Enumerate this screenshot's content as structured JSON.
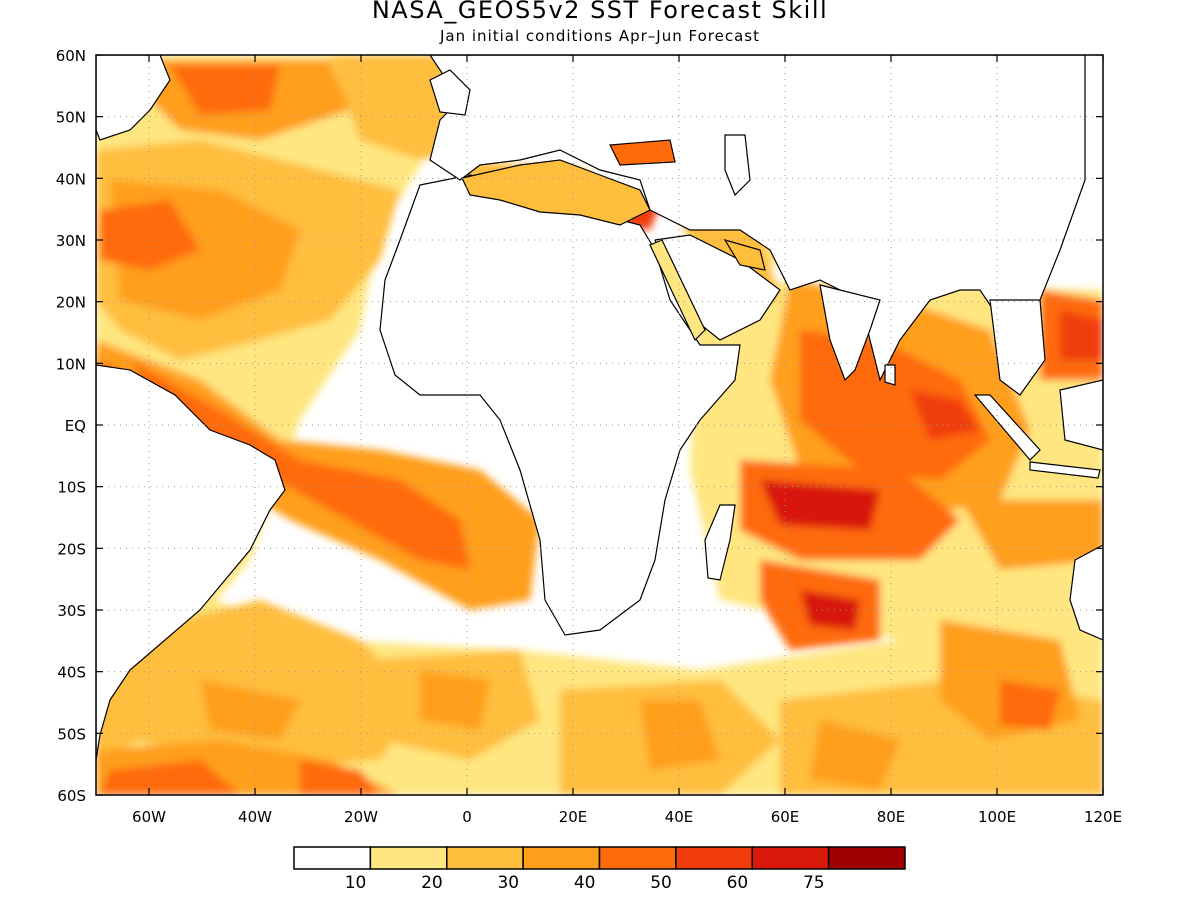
{
  "title": "NASA_GEOS5v2 SST Forecast Skill",
  "subtitle": "Jan initial conditions  Apr–Jun Forecast",
  "map": {
    "projection": "equirectangular",
    "lon_range": [
      -70,
      120
    ],
    "lat_range": [
      -60,
      60
    ],
    "grid": "dotted",
    "lat_labels": [
      "60N",
      "50N",
      "40N",
      "30N",
      "20N",
      "10N",
      "EQ",
      "10S",
      "20S",
      "30S",
      "40S",
      "50S",
      "60S"
    ],
    "lon_labels": [
      "60W",
      "40W",
      "20W",
      "0",
      "20E",
      "40E",
      "60E",
      "80E",
      "100E",
      "120E"
    ]
  },
  "colorbar": {
    "boundaries": [
      "10",
      "20",
      "30",
      "40",
      "50",
      "60",
      "75"
    ],
    "colors": [
      "#ffffff",
      "#ffe680",
      "#ffbe3c",
      "#ff9f1c",
      "#ff6a0a",
      "#f03c0a",
      "#d8180a",
      "#a00000"
    ]
  }
}
